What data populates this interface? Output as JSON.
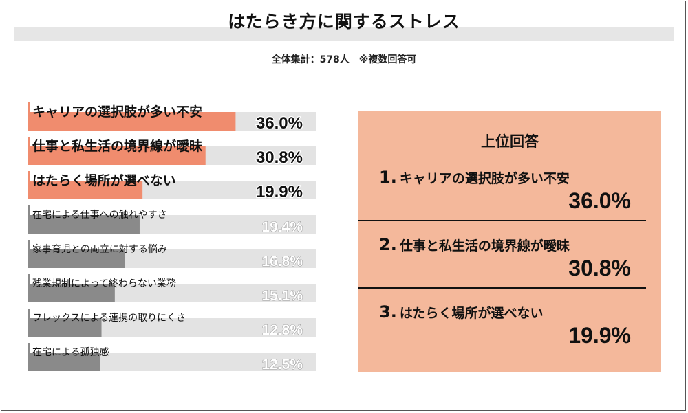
{
  "header": {
    "title": "はたらき方に関するストレス",
    "subtitle": "全体集計：578人　※複数回答可"
  },
  "colors": {
    "highlight": "#f08c6e",
    "normal": "#8a8a8a",
    "track": "#e3e3e3",
    "panel": "#f4b89b",
    "highlight_value_text": "#111111",
    "normal_value_text": "#ffffff"
  },
  "chart_data": {
    "type": "bar",
    "orientation": "horizontal",
    "unit": "%",
    "xlim": [
      0,
      50
    ],
    "highlight_top": 3,
    "categories": [
      "キャリアの選択肢が多い不安",
      "仕事と私生活の境界線が曖昧",
      "はたらく場所が選べない",
      "在宅による仕事への触れやすさ",
      "家事育児との両立に対する悩み",
      "残業規制によって終わらない業務",
      "フレックスによる連携の取りにくさ",
      "在宅による孤独感"
    ],
    "values": [
      36.0,
      30.8,
      19.9,
      19.4,
      16.8,
      15.1,
      12.8,
      12.5
    ],
    "value_labels": [
      "36.0%",
      "30.8%",
      "19.9%",
      "19.4%",
      "16.8%",
      "15.1%",
      "12.8%",
      "12.5%"
    ]
  },
  "panel": {
    "title": "上位回答",
    "ranks": [
      {
        "num": "1.",
        "label": "キャリアの選択肢が多い不安",
        "value": "36.0%"
      },
      {
        "num": "2.",
        "label": "仕事と私生活の境界線が曖昧",
        "value": "30.8%"
      },
      {
        "num": "3.",
        "label": "はたらく場所が選べない",
        "value": "19.9%"
      }
    ]
  }
}
